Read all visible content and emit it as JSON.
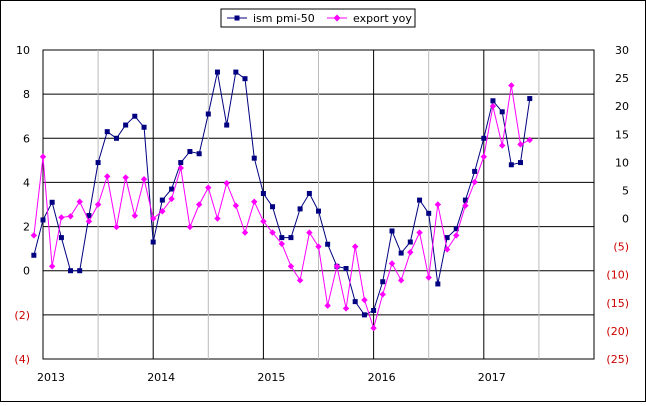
{
  "chart_data": {
    "type": "line",
    "title": "",
    "legend": {
      "position": "top-center",
      "entries": [
        "ism pmi-50",
        "export yoy"
      ]
    },
    "left_axis": {
      "ylim": [
        -4,
        10
      ],
      "ticks": [
        {
          "value": 10,
          "label": "10",
          "color": "#000000"
        },
        {
          "value": 8,
          "label": "8",
          "color": "#000000"
        },
        {
          "value": 6,
          "label": "6",
          "color": "#000000"
        },
        {
          "value": 4,
          "label": "4",
          "color": "#000000"
        },
        {
          "value": 2,
          "label": "2",
          "color": "#000000"
        },
        {
          "value": 0,
          "label": "0",
          "color": "#000000"
        },
        {
          "value": -2,
          "label": "(2)",
          "color": "#cc0000"
        },
        {
          "value": -4,
          "label": "(4)",
          "color": "#cc0000"
        }
      ]
    },
    "right_axis": {
      "ylim": [
        -25,
        30
      ],
      "ticks": [
        {
          "value": 30,
          "label": "30",
          "color": "#000000"
        },
        {
          "value": 25,
          "label": "25",
          "color": "#000000"
        },
        {
          "value": 20,
          "label": "20",
          "color": "#000000"
        },
        {
          "value": 15,
          "label": "15",
          "color": "#000000"
        },
        {
          "value": 10,
          "label": "10",
          "color": "#000000"
        },
        {
          "value": 5,
          "label": "5",
          "color": "#000000"
        },
        {
          "value": 0,
          "label": "0",
          "color": "#000000"
        },
        {
          "value": -5,
          "label": "(5)",
          "color": "#cc0000"
        },
        {
          "value": -10,
          "label": "(10)",
          "color": "#cc0000"
        },
        {
          "value": -15,
          "label": "(15)",
          "color": "#cc0000"
        },
        {
          "value": -20,
          "label": "(20)",
          "color": "#cc0000"
        },
        {
          "value": -25,
          "label": "(25)",
          "color": "#cc0000"
        }
      ]
    },
    "x_axis": {
      "xlim": [
        2013.0,
        2018.0
      ],
      "ticks": [
        {
          "value": 2013,
          "label": "2013"
        },
        {
          "value": 2014,
          "label": "2014"
        },
        {
          "value": 2015,
          "label": "2015"
        },
        {
          "value": 2016,
          "label": "2016"
        },
        {
          "value": 2017,
          "label": "2017"
        }
      ]
    },
    "gridlines": {
      "horizontal": true,
      "vertical_years_color": "#000000",
      "vertical_halfyears_color": "#bbbbbb"
    },
    "series": [
      {
        "name": "ism pmi-50",
        "axis": "left",
        "color": "#000080",
        "marker": "square",
        "x": [
          2012.917,
          2013.0,
          2013.083,
          2013.167,
          2013.25,
          2013.333,
          2013.417,
          2013.5,
          2013.583,
          2013.667,
          2013.75,
          2013.833,
          2013.917,
          2014.0,
          2014.083,
          2014.167,
          2014.25,
          2014.333,
          2014.417,
          2014.5,
          2014.583,
          2014.667,
          2014.75,
          2014.833,
          2014.917,
          2015.0,
          2015.083,
          2015.167,
          2015.25,
          2015.333,
          2015.417,
          2015.5,
          2015.583,
          2015.667,
          2015.75,
          2015.833,
          2015.917,
          2016.0,
          2016.083,
          2016.167,
          2016.25,
          2016.333,
          2016.417,
          2016.5,
          2016.583,
          2016.667,
          2016.75,
          2016.833,
          2016.917,
          2017.0,
          2017.083,
          2017.167,
          2017.25,
          2017.333,
          2017.417
        ],
        "y": [
          0.7,
          2.3,
          3.1,
          1.5,
          0.0,
          0.0,
          2.5,
          4.9,
          6.3,
          6.0,
          6.6,
          7.0,
          6.5,
          1.3,
          3.2,
          3.7,
          4.9,
          5.4,
          5.3,
          7.1,
          9.0,
          6.6,
          9.0,
          8.7,
          5.1,
          3.5,
          2.9,
          1.5,
          1.5,
          2.8,
          3.5,
          2.7,
          1.2,
          0.2,
          0.1,
          -1.4,
          -2.0,
          -1.8,
          -0.5,
          1.8,
          0.8,
          1.3,
          3.2,
          2.6,
          -0.6,
          1.5,
          1.9,
          3.2,
          4.5,
          6.0,
          7.7,
          7.2,
          4.8,
          4.9,
          7.8
        ]
      },
      {
        "name": "export yoy",
        "axis": "right",
        "color": "#ff00ff",
        "marker": "diamond",
        "x": [
          2012.917,
          2013.0,
          2013.083,
          2013.167,
          2013.25,
          2013.333,
          2013.417,
          2013.5,
          2013.583,
          2013.667,
          2013.75,
          2013.833,
          2013.917,
          2014.0,
          2014.083,
          2014.167,
          2014.25,
          2014.333,
          2014.417,
          2014.5,
          2014.583,
          2014.667,
          2014.75,
          2014.833,
          2014.917,
          2015.0,
          2015.083,
          2015.167,
          2015.25,
          2015.333,
          2015.417,
          2015.5,
          2015.583,
          2015.667,
          2015.75,
          2015.833,
          2015.917,
          2016.0,
          2016.083,
          2016.167,
          2016.25,
          2016.333,
          2016.417,
          2016.5,
          2016.583,
          2016.667,
          2016.75,
          2016.833,
          2016.917,
          2017.0,
          2017.083,
          2017.167,
          2017.25,
          2017.333,
          2017.417
        ],
        "y": [
          -3.0,
          11.0,
          -8.5,
          0.2,
          0.4,
          3.0,
          -0.5,
          2.5,
          7.5,
          -1.5,
          7.3,
          0.5,
          7.0,
          0.0,
          1.3,
          3.5,
          9.0,
          -1.5,
          2.5,
          5.5,
          0.0,
          6.3,
          2.3,
          -2.5,
          3.0,
          -0.5,
          -2.5,
          -4.5,
          -8.5,
          -11.0,
          -2.5,
          -5.0,
          -15.5,
          -8.5,
          -16.0,
          -5.0,
          -14.5,
          -19.5,
          -13.5,
          -8.0,
          -11.0,
          -6.0,
          -2.5,
          -10.5,
          2.5,
          -5.5,
          -3.0,
          2.3,
          6.5,
          11.0,
          20.0,
          13.0,
          23.7,
          13.2,
          14.0
        ]
      }
    ]
  }
}
